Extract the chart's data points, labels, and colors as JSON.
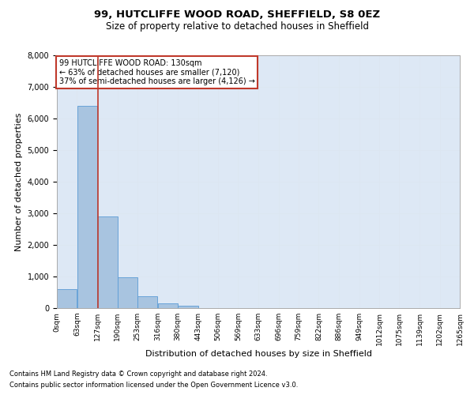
{
  "title_line1": "99, HUTCLIFFE WOOD ROAD, SHEFFIELD, S8 0EZ",
  "title_line2": "Size of property relative to detached houses in Sheffield",
  "xlabel": "Distribution of detached houses by size in Sheffield",
  "ylabel": "Number of detached properties",
  "footnote1": "Contains HM Land Registry data © Crown copyright and database right 2024.",
  "footnote2": "Contains public sector information licensed under the Open Government Licence v3.0.",
  "annotation_line1": "99 HUTCLIFFE WOOD ROAD: 130sqm",
  "annotation_line2": "← 63% of detached houses are smaller (7,120)",
  "annotation_line3": "37% of semi-detached houses are larger (4,126) →",
  "property_size": 130,
  "bar_edges": [
    0,
    63,
    127,
    190,
    253,
    316,
    380,
    443,
    506,
    569,
    633,
    696,
    759,
    822,
    886,
    949,
    1012,
    1075,
    1139,
    1202,
    1265
  ],
  "bar_heights": [
    600,
    6400,
    2900,
    970,
    370,
    150,
    70,
    0,
    0,
    0,
    0,
    0,
    0,
    0,
    0,
    0,
    0,
    0,
    0,
    0
  ],
  "bar_color": "#a8c4e0",
  "bar_edgecolor": "#5b9bd5",
  "vline_color": "#c0392b",
  "vline_x": 130,
  "ylim": [
    0,
    8000
  ],
  "yticks": [
    0,
    1000,
    2000,
    3000,
    4000,
    5000,
    6000,
    7000,
    8000
  ],
  "grid_color": "#dce6f1",
  "bg_color": "#dde8f5",
  "annotation_box_color": "#c0392b",
  "title_fontsize": 9.5,
  "subtitle_fontsize": 8.5,
  "tick_label_fontsize": 6.5,
  "axis_label_fontsize": 8,
  "ylabel_fontsize": 8,
  "footnote_fontsize": 6
}
